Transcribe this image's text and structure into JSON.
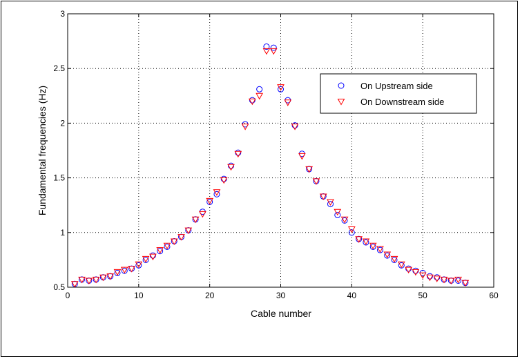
{
  "chart_data": {
    "type": "scatter",
    "title": "",
    "xlabel": "Cable number",
    "ylabel": "Fundamental frequencies (Hz)",
    "xlim": [
      0,
      60
    ],
    "ylim": [
      0.5,
      3
    ],
    "xticks": [
      0,
      10,
      20,
      30,
      40,
      50,
      60
    ],
    "yticks": [
      0.5,
      1,
      1.5,
      2,
      2.5,
      3
    ],
    "xtick_labels": [
      "0",
      "10",
      "20",
      "30",
      "40",
      "50",
      "60"
    ],
    "ytick_labels": [
      "0.5",
      "1",
      "1.5",
      "2",
      "2.5",
      "3"
    ],
    "grid": true,
    "legend_position": "top-right",
    "series": [
      {
        "name": "On Upstream side",
        "marker": "circle",
        "color": "#0000ff",
        "x": [
          1,
          2,
          3,
          4,
          5,
          6,
          7,
          8,
          9,
          10,
          11,
          12,
          13,
          14,
          15,
          16,
          17,
          18,
          19,
          20,
          21,
          22,
          23,
          24,
          25,
          26,
          27,
          28,
          29,
          30,
          31,
          32,
          33,
          34,
          35,
          36,
          37,
          38,
          39,
          40,
          41,
          42,
          43,
          44,
          45,
          46,
          47,
          48,
          49,
          50,
          51,
          52,
          53,
          54,
          55,
          56
        ],
        "y": [
          0.53,
          0.57,
          0.56,
          0.57,
          0.59,
          0.6,
          0.63,
          0.65,
          0.67,
          0.7,
          0.75,
          0.79,
          0.83,
          0.87,
          0.92,
          0.96,
          1.02,
          1.12,
          1.19,
          1.28,
          1.35,
          1.49,
          1.61,
          1.73,
          1.99,
          2.21,
          2.31,
          2.7,
          2.69,
          2.31,
          2.21,
          1.98,
          1.72,
          1.58,
          1.47,
          1.33,
          1.26,
          1.16,
          1.11,
          1.0,
          0.94,
          0.91,
          0.87,
          0.84,
          0.79,
          0.75,
          0.7,
          0.67,
          0.65,
          0.63,
          0.6,
          0.59,
          0.57,
          0.56,
          0.56,
          0.54
        ]
      },
      {
        "name": "On Downstream side",
        "marker": "triangle-down",
        "color": "#ff0000",
        "x": [
          1,
          2,
          3,
          4,
          5,
          6,
          7,
          8,
          9,
          10,
          11,
          12,
          13,
          14,
          15,
          16,
          17,
          18,
          19,
          20,
          21,
          22,
          23,
          24,
          25,
          26,
          27,
          28,
          29,
          30,
          31,
          32,
          33,
          34,
          35,
          36,
          37,
          38,
          39,
          40,
          41,
          42,
          43,
          44,
          45,
          46,
          47,
          48,
          49,
          50,
          51,
          52,
          53,
          54,
          55,
          56
        ],
        "y": [
          0.53,
          0.57,
          0.56,
          0.57,
          0.59,
          0.6,
          0.64,
          0.66,
          0.67,
          0.71,
          0.76,
          0.78,
          0.84,
          0.88,
          0.92,
          0.96,
          1.02,
          1.12,
          1.17,
          1.29,
          1.37,
          1.48,
          1.6,
          1.72,
          1.97,
          2.2,
          2.25,
          2.66,
          2.66,
          2.33,
          2.19,
          1.97,
          1.7,
          1.58,
          1.47,
          1.33,
          1.28,
          1.19,
          1.12,
          1.03,
          0.94,
          0.92,
          0.88,
          0.85,
          0.8,
          0.76,
          0.71,
          0.66,
          0.64,
          0.61,
          0.59,
          0.58,
          0.57,
          0.56,
          0.57,
          0.54
        ]
      }
    ]
  }
}
